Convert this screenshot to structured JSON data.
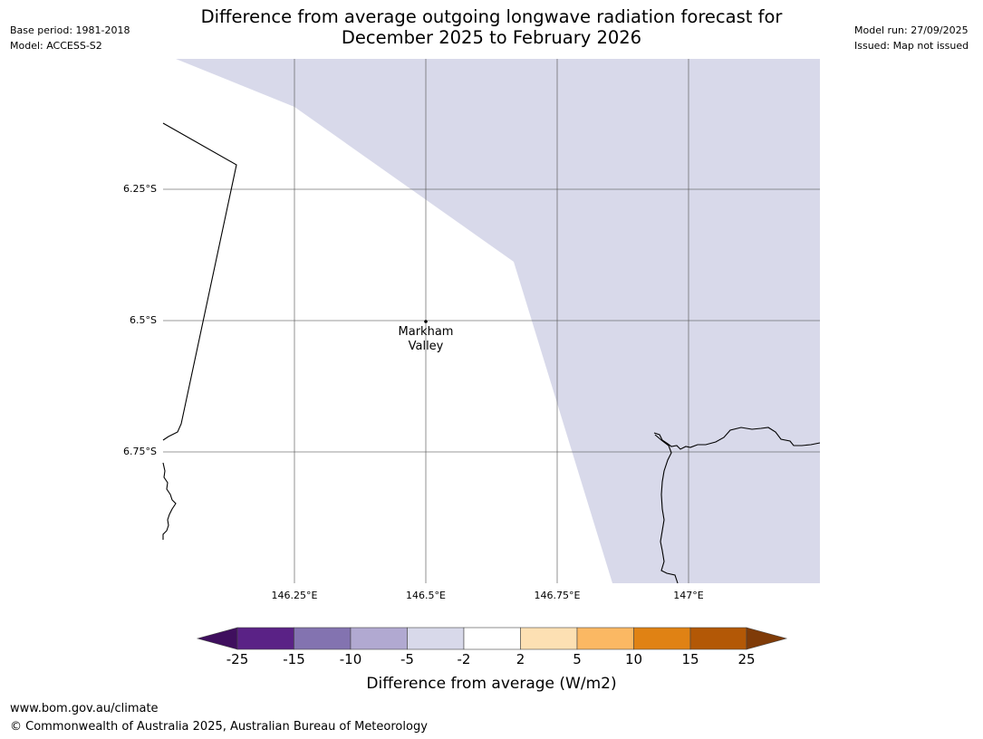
{
  "header": {
    "title_line1": "Difference from average outgoing longwave radiation forecast for",
    "title_line2": "December 2025 to February 2026",
    "base_period": "Base period: 1981-2018",
    "model": "Model: ACCESS-S2",
    "model_run": "Model run: 27/09/2025",
    "issued": "Issued: Map not issued"
  },
  "map": {
    "lat_labels": [
      "6.25°S",
      "6.5°S",
      "6.75°S"
    ],
    "lon_labels": [
      "146.25°E",
      "146.5°E",
      "146.75°E",
      "147°E"
    ],
    "place": {
      "name_line1": "Markham",
      "name_line2": "Valley"
    },
    "shaded_category": "-5 to -2",
    "shade_color": "#d8d9ea"
  },
  "colorbar": {
    "label": "Difference from average (W/m2)",
    "ticks": [
      "-25",
      "-15",
      "-10",
      "-5",
      "-2",
      "2",
      "5",
      "10",
      "15",
      "25"
    ],
    "colors": [
      "#3f0f5e",
      "#5a2286",
      "#8373b0",
      "#b1a9d1",
      "#d8d9ea",
      "#ffffff",
      "#fde0b3",
      "#fbb863",
      "#e08214",
      "#b35806",
      "#7f3b08"
    ]
  },
  "footer": {
    "url": "www.bom.gov.au/climate",
    "copyright": "© Commonwealth of Australia 2025, Australian Bureau of Meteorology"
  }
}
